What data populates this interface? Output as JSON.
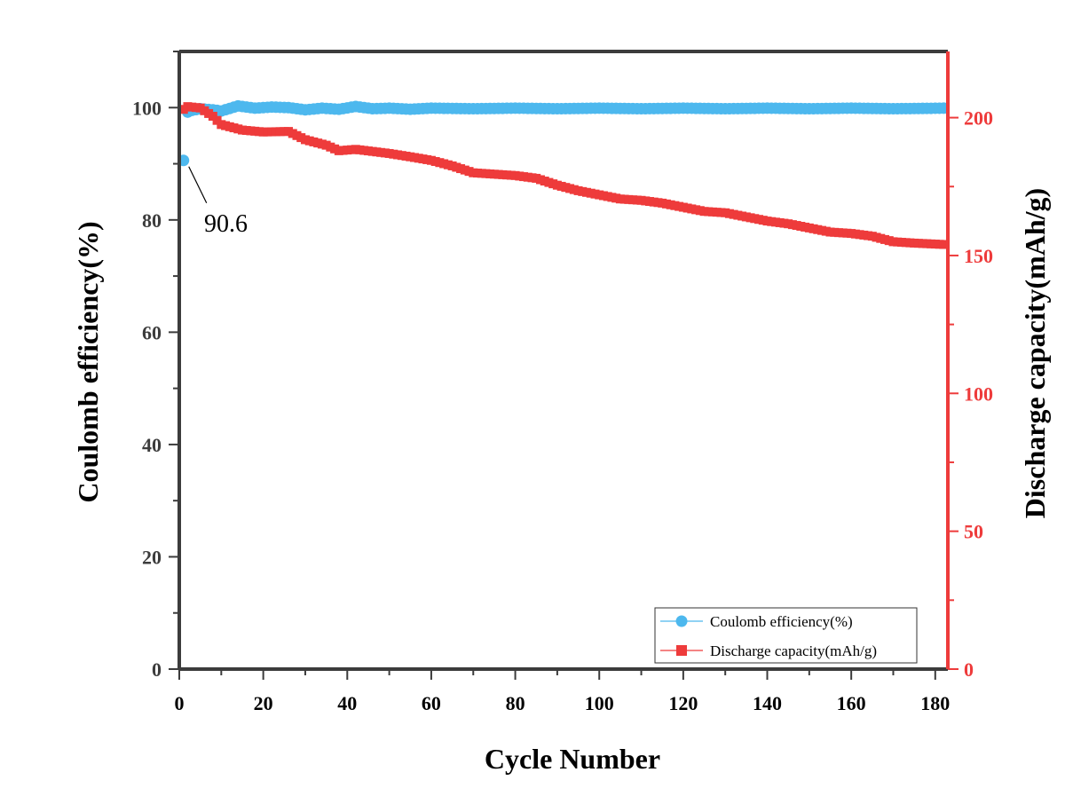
{
  "chart_data": {
    "type": "scatter",
    "xlabel": "Cycle Number",
    "ylabel_left": "Coulomb efficiency(%)",
    "ylabel_right": "Discharge capacity(mAh/g)",
    "xlim": [
      0,
      183
    ],
    "ylim_left": [
      0,
      110
    ],
    "ylim_right": [
      0,
      224
    ],
    "x_ticks": [
      "0",
      "20",
      "40",
      "60",
      "80",
      "100",
      "120",
      "140",
      "160",
      "180"
    ],
    "y_left_ticks": [
      "0",
      "20",
      "40",
      "60",
      "80",
      "100"
    ],
    "y_right_ticks": [
      "0",
      "50",
      "100",
      "150",
      "200"
    ],
    "grid": false,
    "legend_position": "bottom-right",
    "colors": {
      "ce": "#4DB8EE",
      "capacity": "#EE3B3B",
      "left_axis": "#3c3c3c",
      "right_axis": "#EE3B3B"
    },
    "annotation": {
      "text": "90.6",
      "x": 1,
      "y": 90.6
    },
    "series": [
      {
        "name": "Coulomb efficiency(%)",
        "axis": "left",
        "marker": "circle",
        "points": [
          [
            1,
            90.6
          ],
          [
            2,
            99.2
          ],
          [
            3,
            99.5
          ],
          [
            5,
            99.8
          ],
          [
            8,
            99.6
          ],
          [
            10,
            99.4
          ],
          [
            14,
            100.3
          ],
          [
            18,
            99.9
          ],
          [
            22,
            100.1
          ],
          [
            26,
            100.0
          ],
          [
            30,
            99.6
          ],
          [
            34,
            99.9
          ],
          [
            38,
            99.7
          ],
          [
            42,
            100.2
          ],
          [
            46,
            99.8
          ],
          [
            50,
            99.9
          ],
          [
            55,
            99.7
          ],
          [
            60,
            99.9
          ],
          [
            70,
            99.8
          ],
          [
            80,
            99.9
          ],
          [
            90,
            99.8
          ],
          [
            100,
            99.9
          ],
          [
            110,
            99.8
          ],
          [
            120,
            99.9
          ],
          [
            130,
            99.8
          ],
          [
            140,
            99.9
          ],
          [
            150,
            99.8
          ],
          [
            160,
            99.9
          ],
          [
            170,
            99.8
          ],
          [
            182,
            99.9
          ]
        ]
      },
      {
        "name": "Discharge capacity(mAh/g)",
        "axis": "right",
        "marker": "square",
        "points": [
          [
            1,
            203.0
          ],
          [
            2,
            204.0
          ],
          [
            5,
            203.5
          ],
          [
            8,
            200.5
          ],
          [
            10,
            197.5
          ],
          [
            15,
            195.5
          ],
          [
            20,
            194.8
          ],
          [
            26,
            195.0
          ],
          [
            28,
            193.5
          ],
          [
            30,
            192.0
          ],
          [
            35,
            190.0
          ],
          [
            38,
            188.0
          ],
          [
            42,
            188.5
          ],
          [
            50,
            187.0
          ],
          [
            55,
            185.8
          ],
          [
            60,
            184.5
          ],
          [
            65,
            182.5
          ],
          [
            70,
            180.0
          ],
          [
            75,
            179.5
          ],
          [
            80,
            179.0
          ],
          [
            85,
            178.0
          ],
          [
            90,
            175.5
          ],
          [
            95,
            173.5
          ],
          [
            100,
            172.0
          ],
          [
            105,
            170.5
          ],
          [
            110,
            170.0
          ],
          [
            115,
            169.0
          ],
          [
            120,
            167.5
          ],
          [
            125,
            166.0
          ],
          [
            130,
            165.5
          ],
          [
            135,
            164.0
          ],
          [
            140,
            162.5
          ],
          [
            145,
            161.5
          ],
          [
            150,
            160.0
          ],
          [
            155,
            158.5
          ],
          [
            160,
            158.0
          ],
          [
            165,
            157.0
          ],
          [
            170,
            155.0
          ],
          [
            175,
            154.5
          ],
          [
            182,
            154.0
          ]
        ]
      }
    ]
  }
}
